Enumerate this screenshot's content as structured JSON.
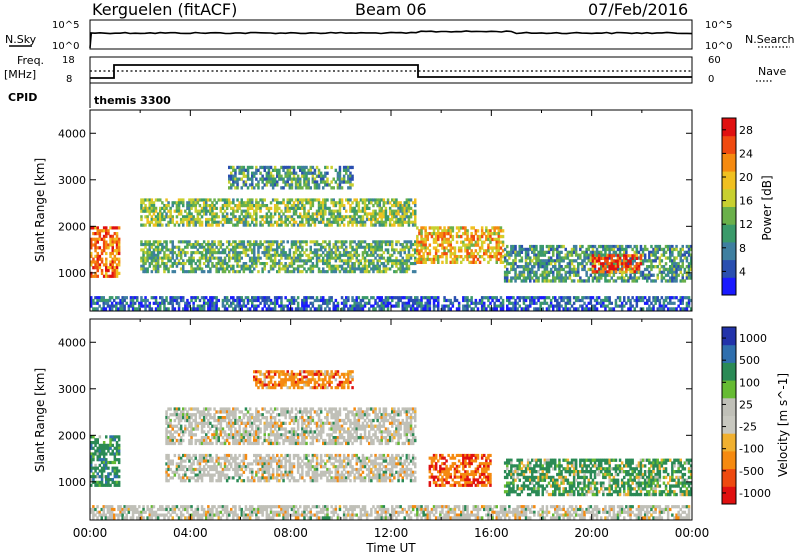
{
  "header": {
    "station": "Kerguelen (fitACF)",
    "beam": "Beam 06",
    "date": "07/Feb/2016"
  },
  "status_panels": {
    "nsky": {
      "label": "N.Sky",
      "ticks": [
        "10^5",
        "10^0"
      ]
    },
    "nsearch": {
      "label": "N.Search",
      "ticks": [
        "10^5",
        "10^0"
      ]
    },
    "freq": {
      "label": "Freq.",
      "unit": "[MHz]",
      "ticks": [
        "18",
        "8"
      ]
    },
    "nave": {
      "label": "Nave",
      "ticks": [
        "60",
        "0"
      ]
    },
    "cpid": {
      "label": "CPID",
      "program": "themis 3300"
    }
  },
  "chart_data": [
    {
      "type": "heatmap",
      "title": "",
      "ylabel": "Slant Range [km]",
      "xlabel": "",
      "xlim": [
        "00:00",
        "24:00"
      ],
      "ylim": [
        180,
        4500
      ],
      "x_ticks": [
        "00:00",
        "04:00",
        "08:00",
        "12:00",
        "16:00",
        "20:00",
        "00:00"
      ],
      "y_ticks": [
        1000,
        2000,
        3000,
        4000
      ],
      "colorbar": {
        "label": "Power [dB]",
        "ticks": [
          4,
          8,
          12,
          16,
          20,
          24,
          28
        ],
        "range": [
          0,
          30
        ],
        "colors": [
          "#1a1aff",
          "#2a4fb0",
          "#3f7fa0",
          "#3a9a6a",
          "#6ab04a",
          "#c8d030",
          "#f0c020",
          "#f58a10",
          "#f04a10",
          "#e01010"
        ]
      },
      "regions": [
        {
          "t0": 0.0,
          "t1": 1.2,
          "r0": 900,
          "r1": 2000,
          "value": 24
        },
        {
          "t0": 2.0,
          "t1": 13.0,
          "r0": 2000,
          "r1": 2600,
          "value": 14
        },
        {
          "t0": 2.0,
          "t1": 13.0,
          "r0": 1000,
          "r1": 1700,
          "value": 12
        },
        {
          "t0": 5.5,
          "t1": 10.5,
          "r0": 2800,
          "r1": 3300,
          "value": 10
        },
        {
          "t0": 13.0,
          "t1": 16.5,
          "r0": 1200,
          "r1": 2000,
          "value": 20
        },
        {
          "t0": 16.5,
          "t1": 24.0,
          "r0": 800,
          "r1": 1600,
          "value": 10
        },
        {
          "t0": 20.0,
          "t1": 22.0,
          "r0": 1000,
          "r1": 1400,
          "value": 26
        },
        {
          "t0": 0.0,
          "t1": 24.0,
          "r0": 200,
          "r1": 500,
          "value": 6
        }
      ]
    },
    {
      "type": "heatmap",
      "title": "",
      "ylabel": "Slant Range [km]",
      "xlabel": "Time UT",
      "xlim": [
        "00:00",
        "24:00"
      ],
      "ylim": [
        180,
        4500
      ],
      "x_ticks": [
        "00:00",
        "04:00",
        "08:00",
        "12:00",
        "16:00",
        "20:00",
        "00:00"
      ],
      "y_ticks": [
        1000,
        2000,
        3000,
        4000
      ],
      "colorbar": {
        "label": "Velocity [m s^-1]",
        "ticks": [
          1000,
          500,
          100,
          25,
          -25,
          -100,
          -500,
          -1000
        ],
        "colors": [
          "#2233aa",
          "#2f6fae",
          "#2a8a55",
          "#66bb33",
          "#c0c0b8",
          "#c8c8c0",
          "#f0b030",
          "#f58a10",
          "#ee4a10",
          "#e01010"
        ]
      },
      "regions": [
        {
          "t0": 0.0,
          "t1": 1.2,
          "r0": 900,
          "r1": 2000,
          "value": 300
        },
        {
          "t0": 3.0,
          "t1": 13.0,
          "r0": 1800,
          "r1": 2600,
          "value": 0
        },
        {
          "t0": 3.0,
          "t1": 13.0,
          "r0": 1000,
          "r1": 1600,
          "value": 0
        },
        {
          "t0": 6.5,
          "t1": 10.5,
          "r0": 3000,
          "r1": 3400,
          "value": -300
        },
        {
          "t0": 13.5,
          "t1": 16.0,
          "r0": 900,
          "r1": 1600,
          "value": -400
        },
        {
          "t0": 16.5,
          "t1": 24.0,
          "r0": 700,
          "r1": 1500,
          "value": 200
        },
        {
          "t0": 0.0,
          "t1": 24.0,
          "r0": 200,
          "r1": 500,
          "value": 0
        }
      ]
    }
  ]
}
